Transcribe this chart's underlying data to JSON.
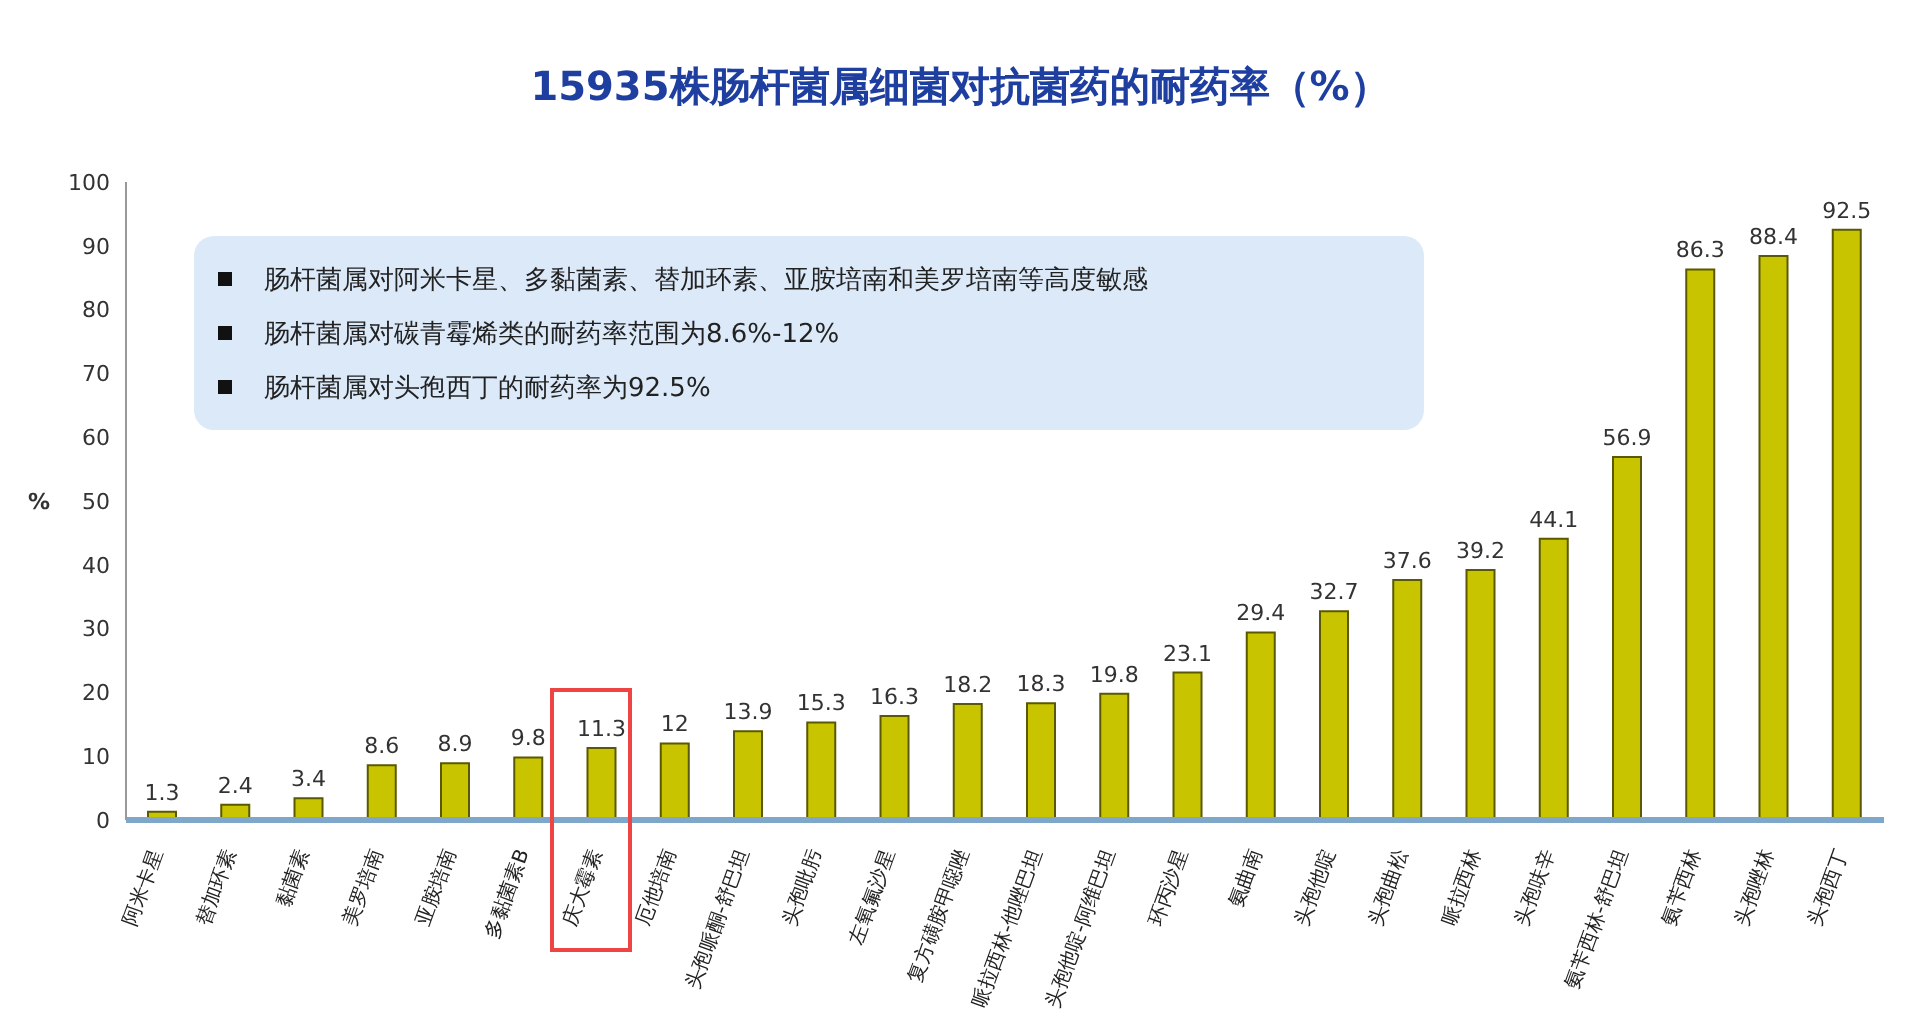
{
  "chart_data": {
    "type": "bar",
    "title": "15935株肠杆菌属细菌对抗菌药的耐药率（%）",
    "ylabel": "%",
    "categories": [
      "阿米卡星",
      "替加环素",
      "黏菌素",
      "美罗培南",
      "亚胺培南",
      "多黏菌素B",
      "庆大霉素",
      "厄他培南",
      "头孢哌酮-舒巴坦",
      "头孢吡肟",
      "左氧氟沙星",
      "复方磺胺甲噁唑",
      "哌拉西林-他唑巴坦",
      "头孢他啶-阿维巴坦",
      "环丙沙星",
      "氨曲南",
      "头孢他啶",
      "头孢曲松",
      "哌拉西林",
      "头孢呋辛",
      "氨苄西林-舒巴坦",
      "氨苄西林",
      "头孢唑林",
      "头孢西丁"
    ],
    "values": [
      1.3,
      2.4,
      3.4,
      8.6,
      8.9,
      9.8,
      11.3,
      12,
      13.9,
      15.3,
      16.3,
      18.2,
      18.3,
      19.8,
      23.1,
      29.4,
      32.7,
      37.6,
      39.2,
      44.1,
      56.9,
      86.3,
      88.4,
      92.5
    ],
    "color": "#c8c400",
    "data_labels": true,
    "legend": false,
    "grid": false,
    "ylim": [
      0,
      100
    ],
    "yticks": [
      0,
      10,
      20,
      30,
      40,
      50,
      60,
      70,
      80,
      90,
      100
    ],
    "annotations": [
      "肠杆菌属对阿米卡星、多黏菌素、替加环素、亚胺培南和美罗培南等高度敏感",
      "肠杆菌属对碳青霉烯类的耐药率范围为8.6%-12%",
      "肠杆菌属对头孢西丁的耐药率为92.5%"
    ]
  }
}
